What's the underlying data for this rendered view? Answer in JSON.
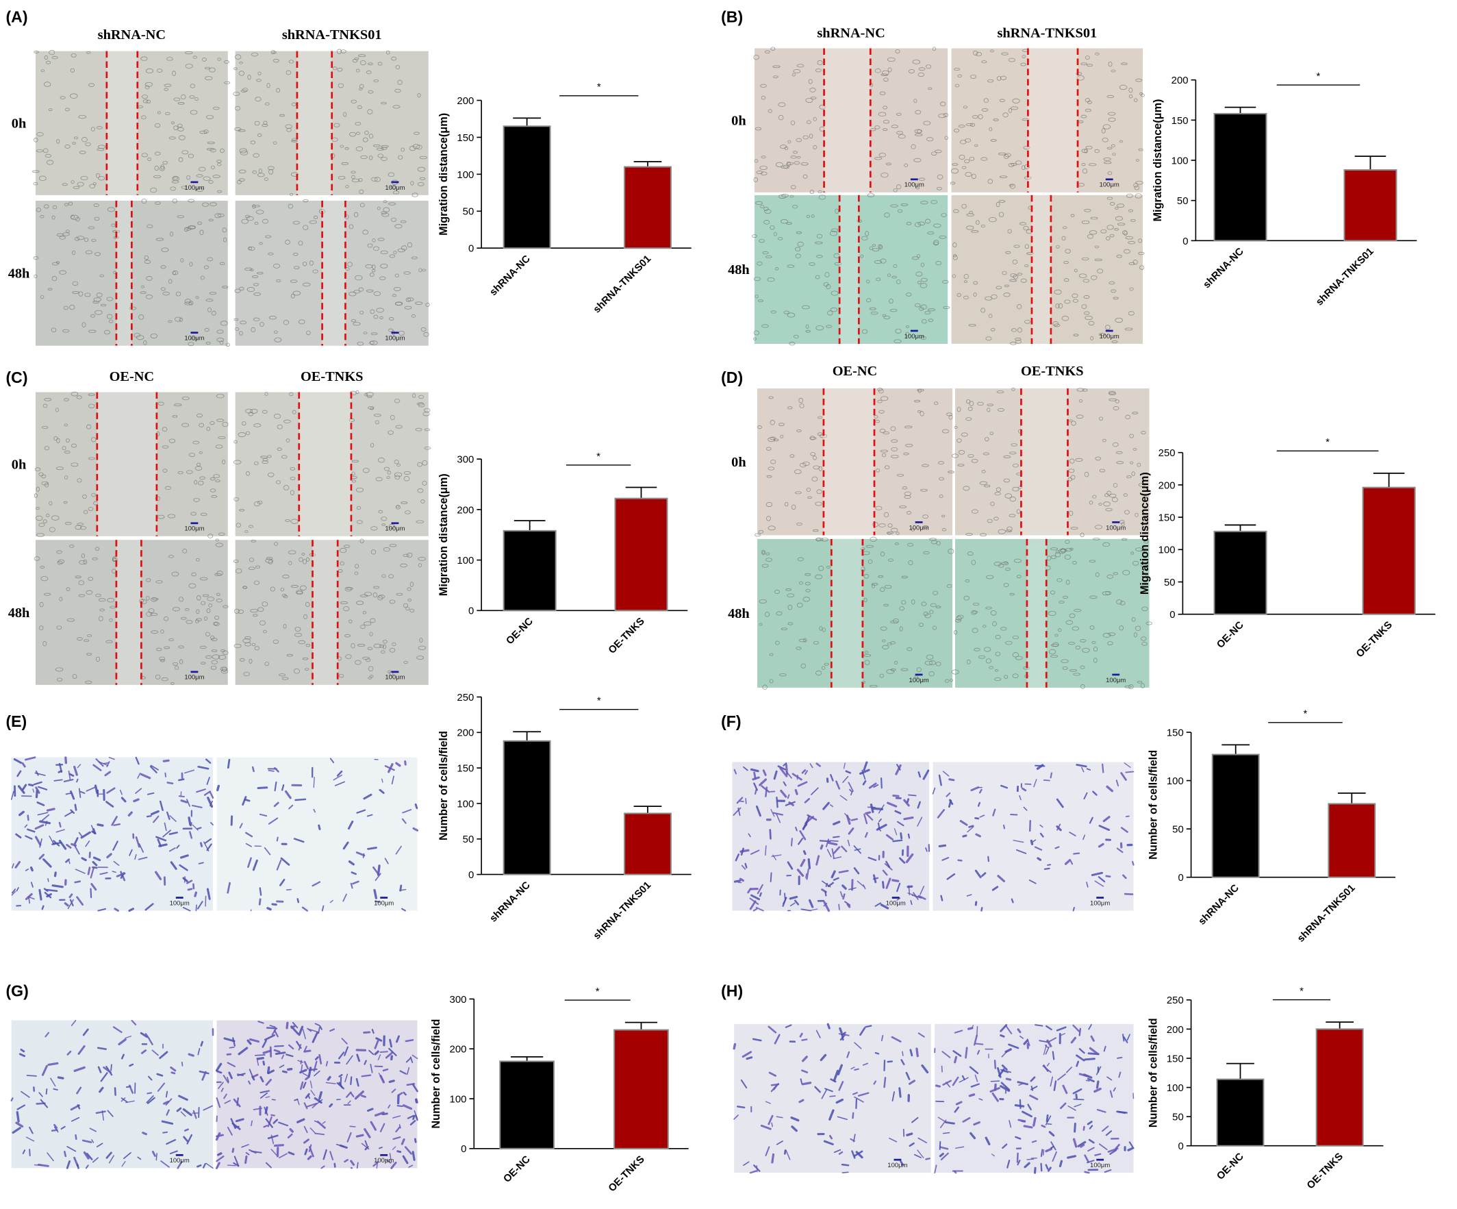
{
  "chart_data": [
    {
      "type": "bar",
      "panel": "(A)",
      "image_columns": [
        "shRNA-NC",
        "shRNA-TNKS01"
      ],
      "image_rows": [
        "0h",
        "48h"
      ],
      "scale_bars": [
        "100μm",
        "100μm",
        "100μm",
        "100μm"
      ],
      "ylabel": "Migration distance(μm)",
      "categories": [
        "shRNA-NC",
        "shRNA-TNKS01"
      ],
      "values": [
        165,
        110
      ],
      "errors": [
        11,
        7
      ],
      "colors": [
        "#000000",
        "#a50000"
      ],
      "ylim": [
        0,
        200
      ],
      "yticks": [
        0,
        50,
        100,
        150,
        200
      ],
      "significance": "*"
    },
    {
      "type": "bar",
      "panel": "(B)",
      "image_columns": [
        "shRNA-NC",
        "shRNA-TNKS01"
      ],
      "image_rows": [
        "0h",
        "48h"
      ],
      "scale_bars": [
        "100μm",
        "100μm",
        "100μm",
        "100μm"
      ],
      "ylabel": "Migration distance(μm)",
      "categories": [
        "shRNA-NC",
        "shRNA-TNKS01"
      ],
      "values": [
        158,
        88
      ],
      "errors": [
        8,
        17
      ],
      "colors": [
        "#000000",
        "#a50000"
      ],
      "ylim": [
        0,
        200
      ],
      "yticks": [
        0,
        50,
        100,
        150,
        200
      ],
      "significance": "*"
    },
    {
      "type": "bar",
      "panel": "(C)",
      "image_columns": [
        "OE-NC",
        "OE-TNKS"
      ],
      "image_rows": [
        "0h",
        "48h"
      ],
      "scale_bars": [
        "100μm",
        "100μm",
        "100μm",
        "100μm"
      ],
      "ylabel": "Migration distance(μm)",
      "categories": [
        "OE-NC",
        "OE-TNKS"
      ],
      "values": [
        158,
        222
      ],
      "errors": [
        20,
        22
      ],
      "colors": [
        "#000000",
        "#a50000"
      ],
      "ylim": [
        0,
        300
      ],
      "yticks": [
        0,
        100,
        200,
        300
      ],
      "significance": "*"
    },
    {
      "type": "bar",
      "panel": "(D)",
      "image_columns": [
        "OE-NC",
        "OE-TNKS"
      ],
      "image_rows": [
        "0h",
        "48h"
      ],
      "scale_bars": [
        "100μm",
        "100μm",
        "100μm",
        "100μm"
      ],
      "ylabel": "Migration distance(μm)",
      "categories": [
        "OE-NC",
        "OE-TNKS"
      ],
      "values": [
        128,
        196
      ],
      "errors": [
        10,
        22
      ],
      "colors": [
        "#000000",
        "#a50000"
      ],
      "ylim": [
        0,
        250
      ],
      "yticks": [
        0,
        50,
        100,
        150,
        200,
        250
      ],
      "significance": "*"
    },
    {
      "type": "bar",
      "panel": "(E)",
      "scale_bars": [
        "100μm",
        "100μm"
      ],
      "ylabel": "Number of cells/field",
      "categories": [
        "shRNA-NC",
        "shRNA-TNKS01"
      ],
      "values": [
        188,
        86
      ],
      "errors": [
        13,
        10
      ],
      "colors": [
        "#000000",
        "#a50000"
      ],
      "ylim": [
        0,
        250
      ],
      "yticks": [
        0,
        50,
        100,
        150,
        200,
        250
      ],
      "significance": "*"
    },
    {
      "type": "bar",
      "panel": "(F)",
      "scale_bars": [
        "100μm",
        "100μm"
      ],
      "ylabel": "Number of cells/field",
      "categories": [
        "shRNA-NC",
        "shRNA-TNKS01"
      ],
      "values": [
        127,
        76
      ],
      "errors": [
        10,
        11
      ],
      "colors": [
        "#000000",
        "#a50000"
      ],
      "ylim": [
        0,
        150
      ],
      "yticks": [
        0,
        50,
        100,
        150
      ],
      "significance": "*"
    },
    {
      "type": "bar",
      "panel": "(G)",
      "scale_bars": [
        "100μm",
        "100μm"
      ],
      "ylabel": "Number of cells/field",
      "categories": [
        "OE-NC",
        "OE-TNKS"
      ],
      "values": [
        175,
        238
      ],
      "errors": [
        9,
        15
      ],
      "colors": [
        "#000000",
        "#a50000"
      ],
      "ylim": [
        0,
        300
      ],
      "yticks": [
        0,
        100,
        200,
        300
      ],
      "significance": "*"
    },
    {
      "type": "bar",
      "panel": "(H)",
      "scale_bars": [
        "100μm",
        "100μm"
      ],
      "ylabel": "Number of cells/field",
      "categories": [
        "OE-NC",
        "OE-TNKS"
      ],
      "values": [
        114,
        200
      ],
      "errors": [
        27,
        12
      ],
      "colors": [
        "#000000",
        "#a50000"
      ],
      "ylim": [
        0,
        250
      ],
      "yticks": [
        0,
        50,
        100,
        150,
        200,
        250
      ],
      "significance": "*"
    }
  ]
}
